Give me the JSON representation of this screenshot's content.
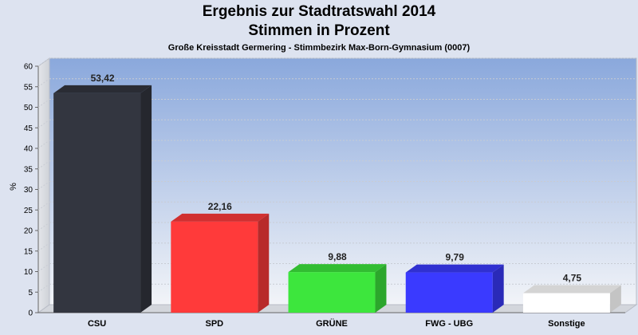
{
  "chart_data": {
    "type": "bar",
    "title": "Ergebnis zur Stadtratswahl 2014",
    "subtitle": "Stimmen in Prozent",
    "caption": "Große Kreisstadt Germering - Stimmbezirk Max-Born-Gymnasium (0007)",
    "ylabel": "%",
    "xlabel": "",
    "ylim": [
      0,
      60
    ],
    "yticks": [
      "0",
      "5",
      "10",
      "15",
      "20",
      "25",
      "30",
      "35",
      "40",
      "45",
      "50",
      "55",
      "60"
    ],
    "grid": true,
    "categories": [
      "CSU",
      "SPD",
      "GRÜNE",
      "FWG - UBG",
      "Sonstige"
    ],
    "values": [
      53.42,
      22.16,
      9.88,
      9.79,
      4.75
    ],
    "value_labels": [
      "53,42",
      "22,16",
      "9,88",
      "9,79",
      "4,75"
    ],
    "colors": [
      "#333640",
      "#ff3a3a",
      "#3de63d",
      "#3a3aff",
      "#ffffff"
    ]
  }
}
